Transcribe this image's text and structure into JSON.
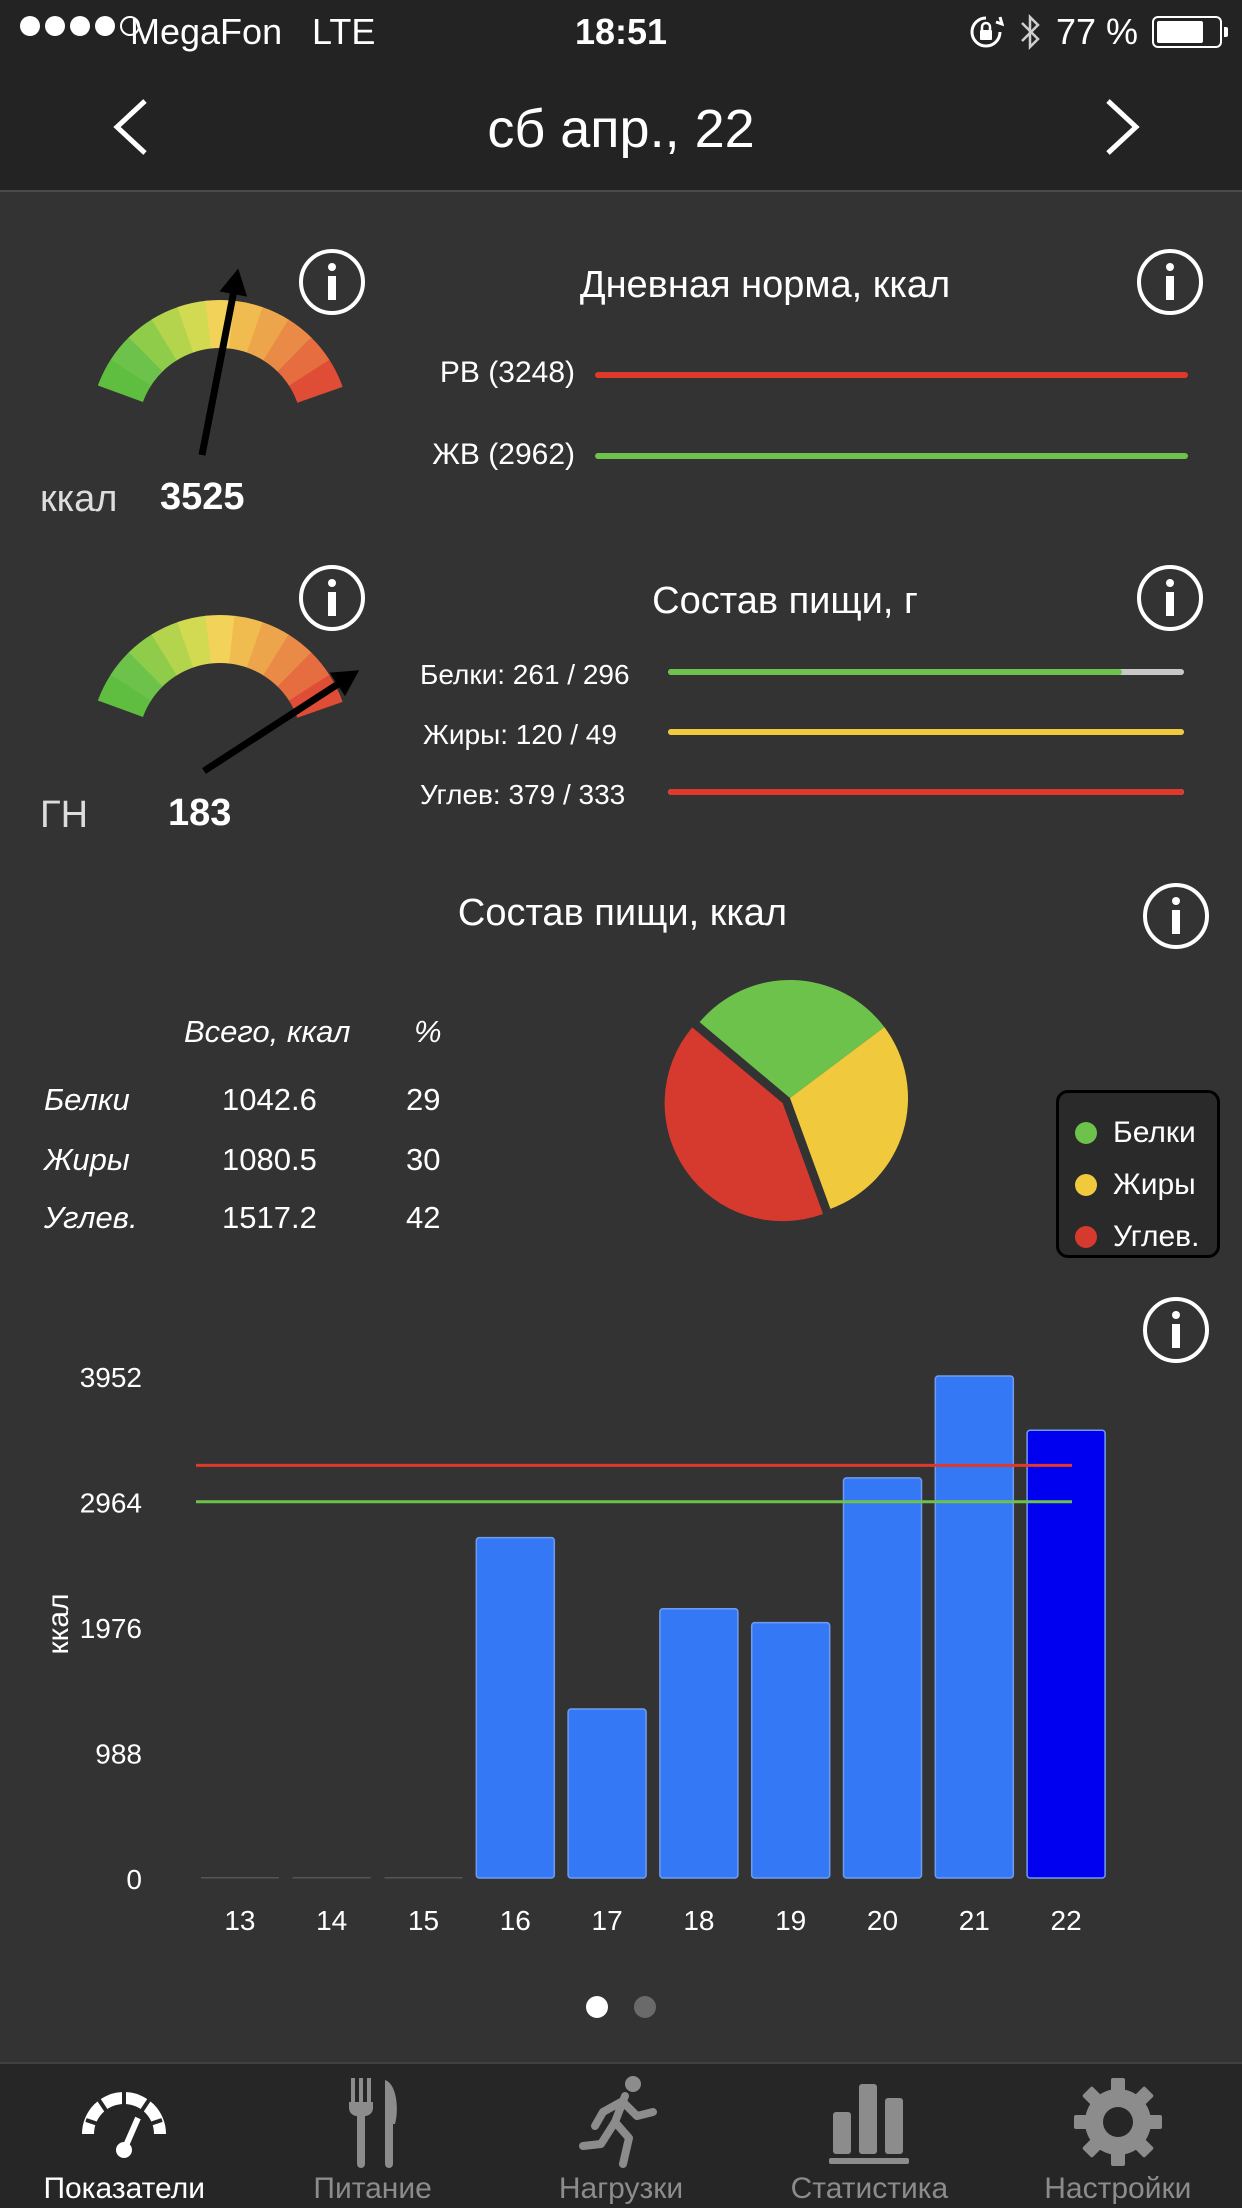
{
  "status_bar": {
    "carrier": "MegaFon",
    "network": "LTE",
    "time": "18:51",
    "battery": "77 %",
    "battery_level": 0.77
  },
  "nav": {
    "title": "сб  апр., 22",
    "prev_icon": "chevron-left-icon",
    "next_icon": "chevron-right-icon"
  },
  "calories_gauge": {
    "label": "ккал",
    "value": "3525"
  },
  "daily_norm": {
    "title": "Дневная норма, ккал",
    "items": [
      {
        "label": "РВ (3248)",
        "color": "#e0382b"
      },
      {
        "label": "ЖВ (2962)",
        "color": "#6cc24a"
      }
    ]
  },
  "gl_gauge": {
    "label": "ГН",
    "value": "183"
  },
  "composition_g": {
    "title": "Состав пищи, г",
    "items": [
      {
        "label": "Белки: 261 / 296",
        "fill": 0.88,
        "color": "#6cc24a"
      },
      {
        "label": "Жиры: 120 / 49",
        "fill": 1.0,
        "color": "#f0ca3c"
      },
      {
        "label": "Углев: 379 / 333",
        "fill": 1.0,
        "color": "#e0382b"
      }
    ]
  },
  "composition_kcal": {
    "title": "Состав пищи, ккал",
    "header_total": "Всего, ккал",
    "header_pct": "%",
    "rows": [
      {
        "name": "Белки",
        "total": "1042.6",
        "pct": "29"
      },
      {
        "name": "Жиры",
        "total": "1080.5",
        "pct": "30"
      },
      {
        "name": "Углев.",
        "total": "1517.2",
        "pct": "42"
      }
    ],
    "legend": [
      {
        "label": "Белки",
        "color": "#6cc24a"
      },
      {
        "label": "Жиры",
        "color": "#f0ca3c"
      },
      {
        "label": "Углев.",
        "color": "#d63a2e"
      }
    ]
  },
  "chart_data": [
    {
      "type": "pie",
      "categories": [
        "Белки",
        "Жиры",
        "Углев."
      ],
      "values": [
        1042.6,
        1080.5,
        1517.2
      ],
      "colors": [
        "#6cc24a",
        "#f0ca3c",
        "#d63a2e"
      ]
    },
    {
      "type": "bar",
      "categories": [
        "13",
        "14",
        "15",
        "16",
        "17",
        "18",
        "19",
        "20",
        "21",
        "22"
      ],
      "values": [
        0,
        0,
        0,
        2680,
        1330,
        2120,
        2010,
        3150,
        3952,
        3525
      ],
      "ylabel": "ккал",
      "yticks": [
        "0",
        "988",
        "1976",
        "2964",
        "3952"
      ],
      "ylim": [
        0,
        3952
      ],
      "reference_lines": [
        {
          "value": 3248,
          "color": "#e0382b"
        },
        {
          "value": 2962,
          "color": "#6cc24a"
        }
      ],
      "bar_color": "#3478f6",
      "highlight_color": "#0000f0",
      "highlight_index": 9
    }
  ],
  "pages": {
    "count": 2,
    "active": 0
  },
  "tabs": [
    {
      "label": "Показатели",
      "icon": "speedometer-icon",
      "active": true
    },
    {
      "label": "Питание",
      "icon": "fork-knife-icon",
      "active": false
    },
    {
      "label": "Нагрузки",
      "icon": "runner-icon",
      "active": false
    },
    {
      "label": "Статистика",
      "icon": "bar-chart-icon",
      "active": false
    },
    {
      "label": "Настройки",
      "icon": "gear-icon",
      "active": false
    }
  ]
}
